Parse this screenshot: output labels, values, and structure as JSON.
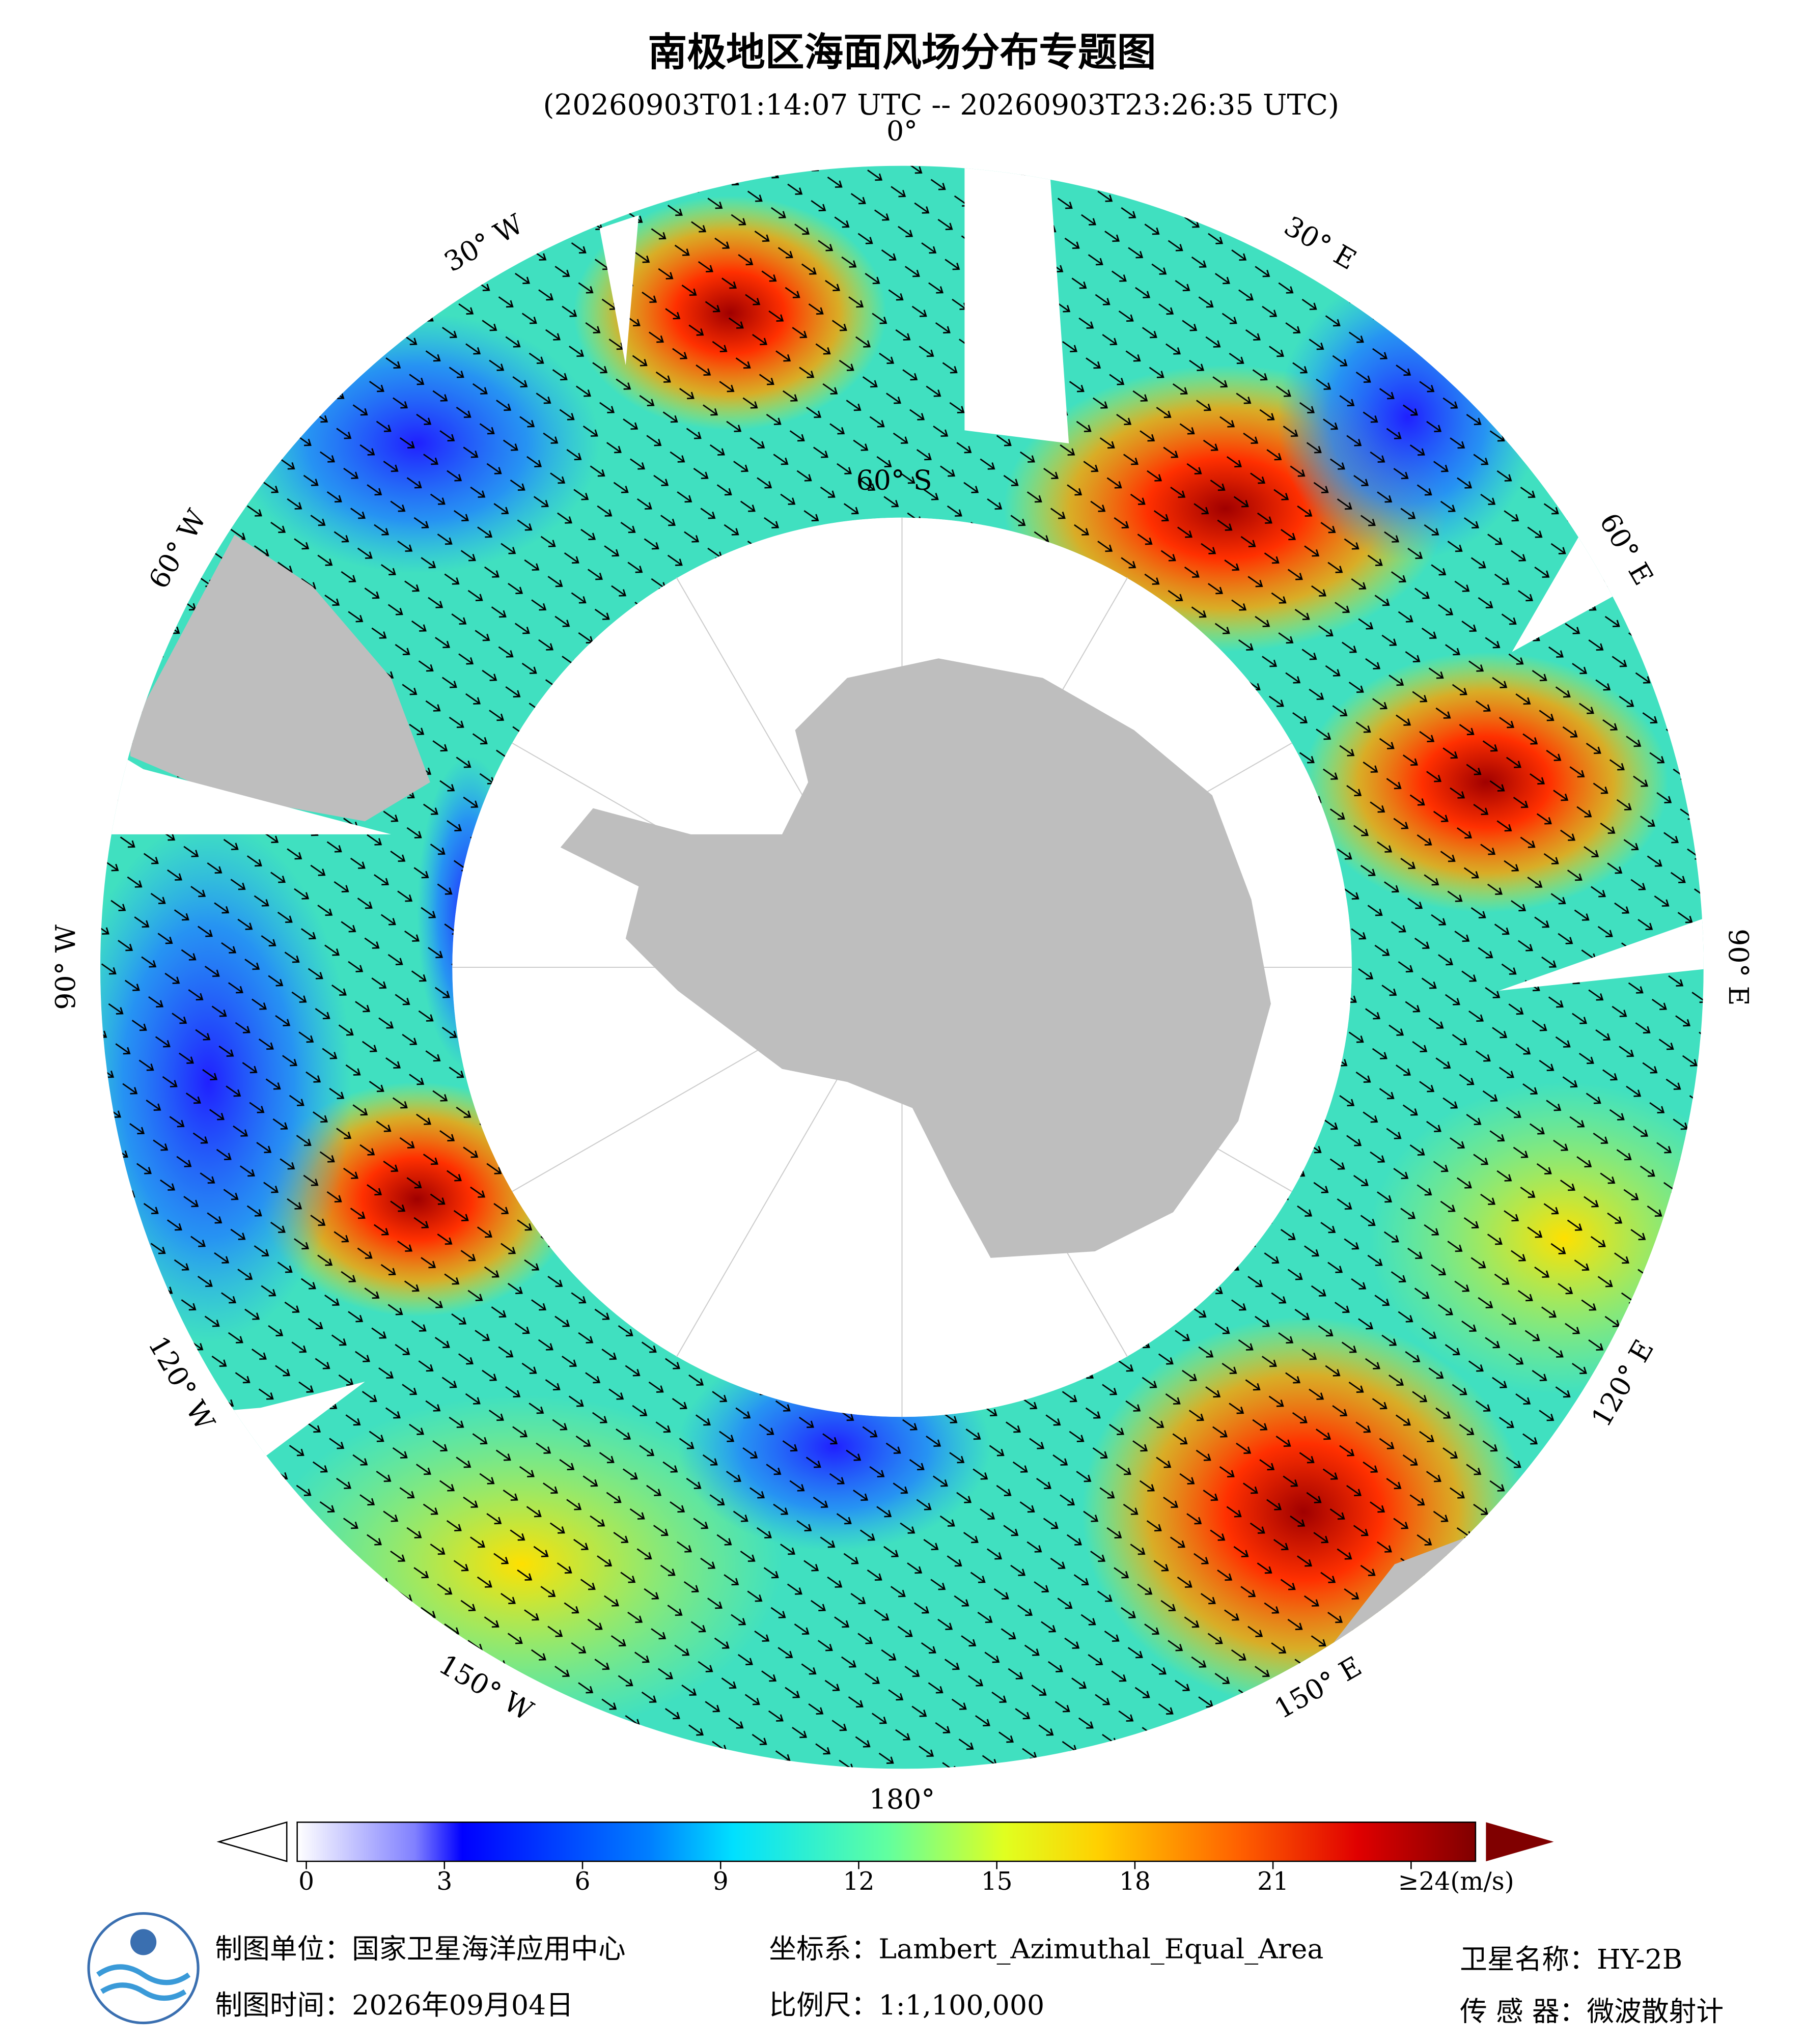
{
  "title": "南极地区海面风场分布专题图",
  "subtitle": "(20260903T01:14:07 UTC -- 20260903T23:26:35 UTC)",
  "lon_labels": [
    "0°",
    "30° E",
    "60° E",
    "90° E",
    "120° E",
    "150° E",
    "180°",
    "150° W",
    "120° W",
    "90° W",
    "60° W",
    "30° W"
  ],
  "lat_label": "60° S",
  "colorbar": {
    "lim": [
      0,
      25.4
    ],
    "ticks": [
      0,
      3,
      6,
      9,
      12,
      15,
      18,
      21,
      {
        "value": 24,
        "label": "≥24(m/s)"
      }
    ]
  },
  "footer": {
    "unit": "制图单位：国家卫星海洋应用中心",
    "date": "制图时间：2026年09月04日",
    "crs": "坐标系：Lambert_Azimuthal_Equal_Area",
    "scale": "比例尺：1:1,100,000",
    "satellite": "卫星名称：HY-2B",
    "sensor": "传 感 器：微波散射计"
  }
}
